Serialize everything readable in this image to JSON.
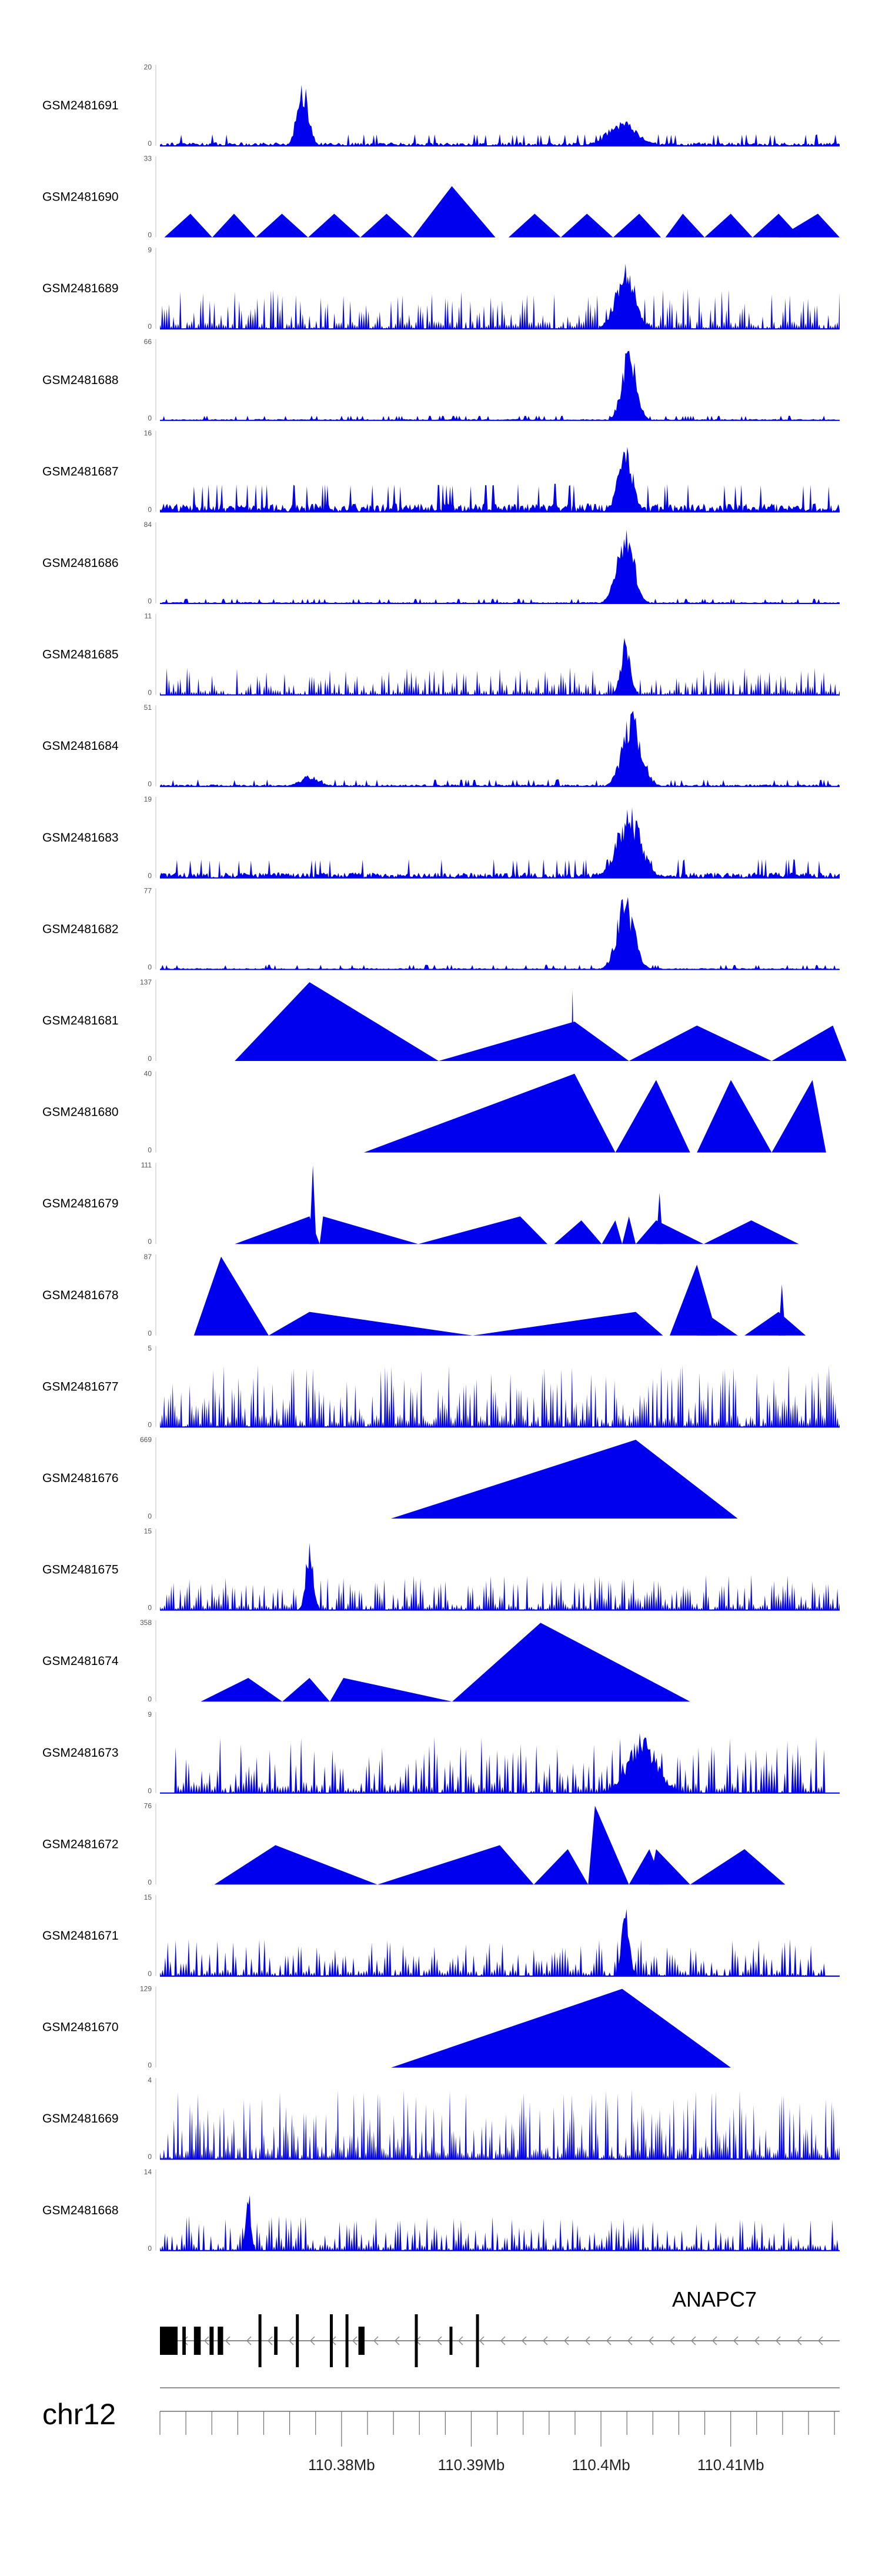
{
  "chart_data": {
    "type": "area",
    "title": "",
    "layout": "stacked-tracks",
    "tracks": [
      {
        "name": "GSM2481691",
        "ymax": "20",
        "ymin": "0",
        "mode": "dense",
        "seed": 91,
        "density": 120,
        "base": 0.05,
        "bursts": [
          [
            0.21,
            0.9,
            0.012
          ],
          [
            0.68,
            0.35,
            0.03
          ]
        ],
        "regions": [
          [
            0.0,
            1.0
          ]
        ]
      },
      {
        "name": "GSM2481690",
        "ymax": "33",
        "ymin": "0",
        "mode": "tri",
        "tris": [
          [
            0.01,
            0.07,
            0.12,
            0.3
          ],
          [
            0.12,
            0.17,
            0.22,
            0.3
          ],
          [
            0.22,
            0.28,
            0.34,
            0.3
          ],
          [
            0.34,
            0.4,
            0.46,
            0.3
          ],
          [
            0.46,
            0.52,
            0.58,
            0.3
          ],
          [
            0.58,
            0.67,
            0.77,
            0.65
          ],
          [
            0.8,
            0.86,
            0.92,
            0.3
          ],
          [
            0.92,
            0.98,
            1.04,
            0.3
          ],
          [
            1.04,
            1.1,
            1.15,
            0.3
          ],
          [
            1.16,
            1.2,
            1.25,
            0.3
          ],
          [
            1.25,
            1.31,
            1.36,
            0.3
          ],
          [
            1.36,
            1.42,
            1.47,
            0.3
          ],
          [
            1.42,
            1.51,
            1.56,
            0.3
          ]
        ]
      },
      {
        "name": "GSM2481689",
        "ymax": "9",
        "ymin": "0",
        "mode": "spiky",
        "seed": 89,
        "density": 150,
        "base": 0.32,
        "bursts": [
          [
            0.685,
            0.9,
            0.02
          ]
        ],
        "regions": [
          [
            0.0,
            1.0
          ]
        ]
      },
      {
        "name": "GSM2481688",
        "ymax": "66",
        "ymin": "0",
        "mode": "dense",
        "seed": 88,
        "density": 130,
        "base": 0.02,
        "bursts": [
          [
            0.69,
            1.0,
            0.015
          ]
        ],
        "regions": [
          [
            0.0,
            1.0
          ]
        ]
      },
      {
        "name": "GSM2481687",
        "ymax": "16",
        "ymin": "0",
        "mode": "dense",
        "seed": 87,
        "density": 140,
        "base": 0.12,
        "bursts": [
          [
            0.685,
            0.9,
            0.015
          ]
        ],
        "regions": [
          [
            0.0,
            1.0
          ]
        ]
      },
      {
        "name": "GSM2481686",
        "ymax": "84",
        "ymin": "0",
        "mode": "dense",
        "seed": 86,
        "density": 130,
        "base": 0.02,
        "bursts": [
          [
            0.685,
            1.0,
            0.018
          ]
        ],
        "regions": [
          [
            0.0,
            1.0
          ]
        ]
      },
      {
        "name": "GSM2481685",
        "ymax": "11",
        "ymin": "0",
        "mode": "spiky",
        "seed": 85,
        "density": 150,
        "base": 0.22,
        "bursts": [
          [
            0.685,
            0.75,
            0.01
          ]
        ],
        "regions": [
          [
            0.0,
            1.0
          ]
        ]
      },
      {
        "name": "GSM2481684",
        "ymax": "51",
        "ymin": "0",
        "mode": "dense",
        "seed": 84,
        "density": 130,
        "base": 0.03,
        "bursts": [
          [
            0.695,
            1.0,
            0.02
          ],
          [
            0.22,
            0.15,
            0.02
          ]
        ],
        "regions": [
          [
            0.0,
            1.0
          ]
        ]
      },
      {
        "name": "GSM2481683",
        "ymax": "19",
        "ymin": "0",
        "mode": "dense",
        "seed": 83,
        "density": 140,
        "base": 0.08,
        "bursts": [
          [
            0.69,
            0.95,
            0.025
          ]
        ],
        "regions": [
          [
            0.0,
            1.0
          ]
        ]
      },
      {
        "name": "GSM2481682",
        "ymax": "77",
        "ymin": "0",
        "mode": "dense",
        "seed": 82,
        "density": 130,
        "base": 0.02,
        "bursts": [
          [
            0.685,
            1.0,
            0.018
          ]
        ],
        "regions": [
          [
            0.0,
            1.0
          ]
        ]
      },
      {
        "name": "GSM2481681",
        "ymax": "137",
        "ymin": "0",
        "mode": "tri",
        "tris": [
          [
            0.11,
            0.22,
            0.41,
            1.0
          ],
          [
            0.22,
            0.22,
            0.41,
            0.5
          ],
          [
            0.41,
            0.61,
            0.69,
            0.5
          ],
          [
            0.605,
            0.607,
            0.609,
            0.9
          ],
          [
            0.69,
            0.79,
            0.9,
            0.45
          ],
          [
            0.9,
            0.99,
            1.01,
            0.45
          ]
        ]
      },
      {
        "name": "GSM2481680",
        "ymax": "40",
        "ymin": "0",
        "mode": "tri",
        "tris": [
          [
            0.3,
            0.61,
            0.67,
            1.0
          ],
          [
            0.67,
            0.73,
            0.78,
            0.92
          ],
          [
            0.79,
            0.84,
            0.9,
            0.92
          ],
          [
            0.9,
            0.96,
            0.98,
            0.92
          ]
        ]
      },
      {
        "name": "GSM2481679",
        "ymax": "111",
        "ymin": "0",
        "mode": "tri",
        "tris": [
          [
            0.11,
            0.22,
            0.235,
            0.35
          ],
          [
            0.22,
            0.225,
            0.23,
            1.0
          ],
          [
            0.235,
            0.24,
            0.38,
            0.35
          ],
          [
            0.38,
            0.53,
            0.57,
            0.35
          ],
          [
            0.58,
            0.62,
            0.65,
            0.3
          ],
          [
            0.65,
            0.67,
            0.68,
            0.3
          ],
          [
            0.68,
            0.69,
            0.7,
            0.35
          ],
          [
            0.7,
            0.73,
            0.8,
            0.3
          ],
          [
            0.73,
            0.735,
            0.74,
            0.65
          ],
          [
            0.8,
            0.87,
            0.94,
            0.3
          ]
        ]
      },
      {
        "name": "GSM2481678",
        "ymax": "87",
        "ymin": "0",
        "mode": "tri",
        "tris": [
          [
            0.05,
            0.09,
            0.16,
            1.0
          ],
          [
            0.16,
            0.22,
            0.46,
            0.3
          ],
          [
            0.46,
            0.7,
            0.74,
            0.3
          ],
          [
            0.75,
            0.79,
            0.82,
            0.9
          ],
          [
            0.79,
            0.8,
            0.85,
            0.3
          ],
          [
            0.86,
            0.91,
            0.95,
            0.3
          ],
          [
            0.91,
            0.915,
            0.92,
            0.65
          ]
        ]
      },
      {
        "name": "GSM2481677",
        "ymax": "5",
        "ymin": "0",
        "mode": "spiky",
        "seed": 77,
        "density": 160,
        "base": 0.5,
        "bursts": [],
        "regions": [
          [
            0.0,
            1.0
          ]
        ]
      },
      {
        "name": "GSM2481676",
        "ymax": "669",
        "ymin": "0",
        "mode": "tri",
        "tris": [
          [
            0.34,
            0.7,
            0.85,
            1.0
          ],
          [
            0.34,
            0.7,
            0.7,
            0.4
          ]
        ]
      },
      {
        "name": "GSM2481675",
        "ymax": "15",
        "ymin": "0",
        "mode": "spiky",
        "seed": 75,
        "density": 150,
        "base": 0.28,
        "bursts": [
          [
            0.22,
            0.9,
            0.008
          ]
        ],
        "regions": [
          [
            0.0,
            1.0
          ]
        ]
      },
      {
        "name": "GSM2481674",
        "ymax": "358",
        "ymin": "0",
        "mode": "tri",
        "tris": [
          [
            0.06,
            0.13,
            0.18,
            0.3
          ],
          [
            0.18,
            0.22,
            0.25,
            0.3
          ],
          [
            0.25,
            0.27,
            0.43,
            0.3
          ],
          [
            0.43,
            0.56,
            0.78,
            1.0
          ]
        ]
      },
      {
        "name": "GSM2481673",
        "ymax": "9",
        "ymin": "0",
        "mode": "spiky",
        "seed": 73,
        "density": 130,
        "base": 0.45,
        "bursts": [
          [
            0.71,
            0.8,
            0.03
          ]
        ],
        "regions": [
          [
            0.02,
            0.98
          ]
        ]
      },
      {
        "name": "GSM2481672",
        "ymax": "76",
        "ymin": "0",
        "mode": "tri",
        "tris": [
          [
            0.08,
            0.17,
            0.32,
            0.5
          ],
          [
            0.32,
            0.5,
            0.55,
            0.5
          ],
          [
            0.55,
            0.6,
            0.63,
            0.45
          ],
          [
            0.63,
            0.64,
            0.69,
            1.0
          ],
          [
            0.69,
            0.72,
            0.74,
            0.45
          ],
          [
            0.72,
            0.73,
            0.78,
            0.45
          ],
          [
            0.78,
            0.86,
            0.92,
            0.45
          ]
        ]
      },
      {
        "name": "GSM2481671",
        "ymax": "15",
        "ymin": "0",
        "mode": "spiky",
        "seed": 71,
        "density": 130,
        "base": 0.3,
        "bursts": [
          [
            0.685,
            0.95,
            0.008
          ]
        ],
        "regions": [
          [
            0.0,
            0.98
          ]
        ]
      },
      {
        "name": "GSM2481670",
        "ymax": "129",
        "ymin": "0",
        "mode": "tri",
        "tris": [
          [
            0.34,
            0.68,
            0.84,
            1.0
          ]
        ]
      },
      {
        "name": "GSM2481669",
        "ymax": "4",
        "ymin": "0",
        "mode": "spiky",
        "seed": 69,
        "density": 170,
        "base": 0.55,
        "bursts": [],
        "regions": [
          [
            0.0,
            1.0
          ]
        ]
      },
      {
        "name": "GSM2481668",
        "ymax": "14",
        "ymin": "0",
        "mode": "spiky",
        "seed": 68,
        "density": 140,
        "base": 0.28,
        "bursts": [
          [
            0.13,
            0.9,
            0.005
          ]
        ],
        "regions": [
          [
            0.0,
            1.0
          ]
        ]
      }
    ],
    "gene": {
      "name": "ANAPC7",
      "strand": "-",
      "exons": [
        [
          0.0,
          0.026
        ],
        [
          0.033,
          0.038
        ],
        [
          0.05,
          0.06
        ],
        [
          0.073,
          0.079
        ],
        [
          0.085,
          0.093
        ],
        [
          0.145,
          0.148
        ],
        [
          0.168,
          0.173
        ],
        [
          0.2,
          0.2
        ],
        [
          0.253,
          0.25
        ],
        [
          0.275,
          0.273
        ],
        [
          0.292,
          0.301
        ],
        [
          0.375,
          0.378
        ],
        [
          0.426,
          0.43
        ],
        [
          0.465,
          0.468
        ]
      ]
    },
    "axis": {
      "chromosome": "chr12",
      "xlim": [
        110.366,
        110.4184
      ],
      "tick_step_mb": 0.002,
      "labels": [
        {
          "value": 110.38,
          "text": "110.38Mb"
        },
        {
          "value": 110.39,
          "text": "110.39Mb"
        },
        {
          "value": 110.4,
          "text": "110.4Mb"
        },
        {
          "value": 110.41,
          "text": "110.41Mb"
        }
      ]
    },
    "colors": {
      "signal": "#0000ee",
      "gene": "#000000",
      "axis": "#6e6e6e",
      "text": "#000000"
    }
  }
}
